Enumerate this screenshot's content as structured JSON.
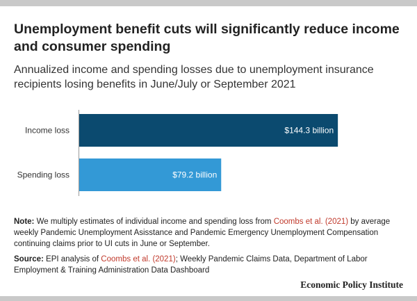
{
  "title": "Unemployment benefit cuts will significantly reduce income and consumer spending",
  "subtitle": "Annualized income and spending losses due to unemployment insurance recipients losing benefits in June/July or September 2021",
  "chart_data": {
    "type": "bar",
    "orientation": "horizontal",
    "categories": [
      "Income loss",
      "Spending loss"
    ],
    "values": [
      144.3,
      79.2
    ],
    "value_labels": [
      "$144.3 billion",
      "$79.2 billion"
    ],
    "colors": [
      "#0b4a6f",
      "#3399d6"
    ],
    "xlim": [
      0,
      152
    ],
    "grid": false
  },
  "note": {
    "label": "Note:",
    "text_before": " We multiply estimates of individual income and spending loss from ",
    "citation": "Coombs et al. (2021)",
    "text_after": " by average weekly Pandemic Unemployment Asisstance and Pandemic Emergency Unemployment Compensation continuing claims prior to UI cuts in June or September."
  },
  "source": {
    "label": "Source:",
    "text_before": " EPI analysis of ",
    "citation": "Coombs et al. (2021)",
    "text_after": "; Weekly Pandemic Claims Data, Department of Labor Employment & Training Administration Data Dashboard"
  },
  "brand": "Economic Policy Institute"
}
